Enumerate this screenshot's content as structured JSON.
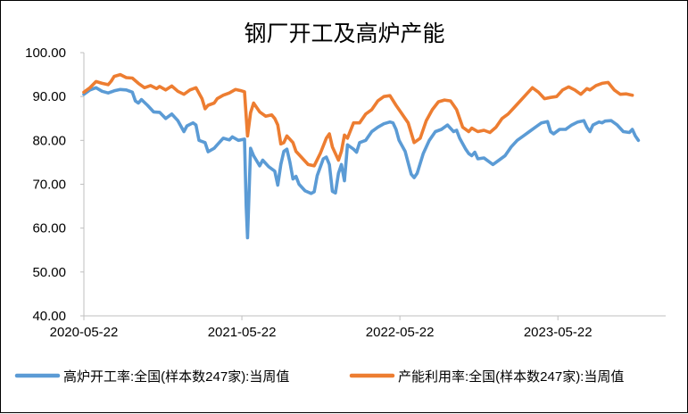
{
  "chart_data": {
    "type": "line",
    "title": "钢厂开工及高炉产能",
    "xlabel": "",
    "ylabel": "",
    "ylim": [
      40,
      100
    ],
    "yticks": [
      "40.00",
      "50.00",
      "60.00",
      "70.00",
      "80.00",
      "90.00",
      "100.00"
    ],
    "xlim": [
      "2020-05-22",
      "2024-01-26"
    ],
    "xticks": [
      "2020-05-22",
      "2021-05-22",
      "2022-05-22",
      "2023-05-22"
    ],
    "grid": false,
    "legend": "bottom",
    "series": [
      {
        "name": "高炉开工率:全国(样本数247家):当周值",
        "color": "#5B9BD5",
        "points": [
          [
            "2020-05-22",
            90.5
          ],
          [
            "2020-06-05",
            91.5
          ],
          [
            "2020-06-19",
            92.0
          ],
          [
            "2020-07-03",
            91.2
          ],
          [
            "2020-07-17",
            90.8
          ],
          [
            "2020-07-31",
            91.3
          ],
          [
            "2020-08-14",
            91.6
          ],
          [
            "2020-08-28",
            91.5
          ],
          [
            "2020-09-11",
            91.0
          ],
          [
            "2020-09-18",
            89.0
          ],
          [
            "2020-09-25",
            88.5
          ],
          [
            "2020-10-02",
            89.3
          ],
          [
            "2020-10-16",
            88.0
          ],
          [
            "2020-10-30",
            86.5
          ],
          [
            "2020-11-13",
            86.4
          ],
          [
            "2020-11-27",
            85.0
          ],
          [
            "2020-12-11",
            86.0
          ],
          [
            "2020-12-25",
            84.5
          ],
          [
            "2021-01-08",
            82.0
          ],
          [
            "2021-01-15",
            83.3
          ],
          [
            "2021-01-29",
            84.0
          ],
          [
            "2021-02-05",
            83.5
          ],
          [
            "2021-02-12",
            80.0
          ],
          [
            "2021-02-26",
            79.5
          ],
          [
            "2021-03-05",
            77.4
          ],
          [
            "2021-03-19",
            78.2
          ],
          [
            "2021-03-26",
            79.0
          ],
          [
            "2021-04-09",
            80.5
          ],
          [
            "2021-04-23",
            80.1
          ],
          [
            "2021-04-30",
            80.8
          ],
          [
            "2021-05-14",
            80.0
          ],
          [
            "2021-05-28",
            80.3
          ],
          [
            "2021-06-01",
            65.0
          ],
          [
            "2021-06-04",
            57.8
          ],
          [
            "2021-06-11",
            78.2
          ],
          [
            "2021-06-18",
            76.5
          ],
          [
            "2021-07-02",
            74.2
          ],
          [
            "2021-07-09",
            75.5
          ],
          [
            "2021-07-23",
            74.0
          ],
          [
            "2021-08-06",
            73.0
          ],
          [
            "2021-08-13",
            69.8
          ],
          [
            "2021-08-20",
            74.5
          ],
          [
            "2021-08-27",
            77.5
          ],
          [
            "2021-09-03",
            78.0
          ],
          [
            "2021-09-10",
            75.0
          ],
          [
            "2021-09-17",
            71.2
          ],
          [
            "2021-09-24",
            71.8
          ],
          [
            "2021-10-01",
            70.0
          ],
          [
            "2021-10-15",
            68.5
          ],
          [
            "2021-10-29",
            67.9
          ],
          [
            "2021-11-05",
            68.3
          ],
          [
            "2021-11-12",
            72.0
          ],
          [
            "2021-11-26",
            75.8
          ],
          [
            "2021-12-03",
            76.2
          ],
          [
            "2021-12-10",
            74.5
          ],
          [
            "2021-12-17",
            68.4
          ],
          [
            "2021-12-24",
            68.0
          ],
          [
            "2021-12-31",
            72.5
          ],
          [
            "2022-01-07",
            74.5
          ],
          [
            "2022-01-14",
            70.8
          ],
          [
            "2022-01-21",
            79.0
          ],
          [
            "2022-02-04",
            78.0
          ],
          [
            "2022-02-11",
            77.3
          ],
          [
            "2022-02-18",
            79.5
          ],
          [
            "2022-03-04",
            80.0
          ],
          [
            "2022-03-18",
            82.0
          ],
          [
            "2022-04-01",
            83.0
          ],
          [
            "2022-04-15",
            83.8
          ],
          [
            "2022-04-29",
            84.2
          ],
          [
            "2022-05-06",
            84.0
          ],
          [
            "2022-05-13",
            82.5
          ],
          [
            "2022-05-20",
            80.0
          ],
          [
            "2022-06-03",
            77.5
          ],
          [
            "2022-06-17",
            72.3
          ],
          [
            "2022-06-24",
            71.5
          ],
          [
            "2022-07-01",
            72.5
          ],
          [
            "2022-07-15",
            77.0
          ],
          [
            "2022-07-29",
            80.0
          ],
          [
            "2022-08-12",
            82.0
          ],
          [
            "2022-08-26",
            82.5
          ],
          [
            "2022-09-09",
            83.5
          ],
          [
            "2022-09-23",
            82.0
          ],
          [
            "2022-09-30",
            82.3
          ],
          [
            "2022-10-07",
            80.5
          ],
          [
            "2022-10-21",
            78.0
          ],
          [
            "2022-10-28",
            77.0
          ],
          [
            "2022-11-04",
            76.5
          ],
          [
            "2022-11-11",
            77.3
          ],
          [
            "2022-11-18",
            75.8
          ],
          [
            "2022-12-02",
            76.0
          ],
          [
            "2022-12-16",
            75.0
          ],
          [
            "2022-12-23",
            74.5
          ],
          [
            "2023-01-06",
            75.5
          ],
          [
            "2023-01-20",
            76.5
          ],
          [
            "2023-02-03",
            78.5
          ],
          [
            "2023-02-17",
            80.0
          ],
          [
            "2023-03-03",
            81.0
          ],
          [
            "2023-03-17",
            82.0
          ],
          [
            "2023-03-31",
            83.0
          ],
          [
            "2023-04-14",
            84.0
          ],
          [
            "2023-04-28",
            84.3
          ],
          [
            "2023-05-05",
            82.0
          ],
          [
            "2023-05-12",
            81.5
          ],
          [
            "2023-05-26",
            82.5
          ],
          [
            "2023-06-09",
            82.5
          ],
          [
            "2023-06-23",
            83.5
          ],
          [
            "2023-07-07",
            84.2
          ],
          [
            "2023-07-21",
            84.5
          ],
          [
            "2023-07-28",
            83.0
          ],
          [
            "2023-08-04",
            82.0
          ],
          [
            "2023-08-11",
            83.5
          ],
          [
            "2023-08-25",
            84.2
          ],
          [
            "2023-09-01",
            84.0
          ],
          [
            "2023-09-08",
            84.4
          ],
          [
            "2023-09-22",
            84.5
          ],
          [
            "2023-10-06",
            83.5
          ],
          [
            "2023-10-20",
            82.0
          ],
          [
            "2023-11-03",
            81.8
          ],
          [
            "2023-11-10",
            82.5
          ],
          [
            "2023-11-17",
            81.0
          ],
          [
            "2023-11-24",
            80.0
          ]
        ]
      },
      {
        "name": "产能利用率:全国(样本数247家):当周值",
        "color": "#ED7D31",
        "points": [
          [
            "2020-05-22",
            91.0
          ],
          [
            "2020-06-05",
            92.0
          ],
          [
            "2020-06-19",
            93.4
          ],
          [
            "2020-07-03",
            93.0
          ],
          [
            "2020-07-17",
            92.7
          ],
          [
            "2020-07-24",
            93.5
          ],
          [
            "2020-07-31",
            94.6
          ],
          [
            "2020-08-14",
            95.0
          ],
          [
            "2020-08-28",
            94.3
          ],
          [
            "2020-09-11",
            94.2
          ],
          [
            "2020-09-25",
            93.0
          ],
          [
            "2020-10-09",
            92.0
          ],
          [
            "2020-10-23",
            92.5
          ],
          [
            "2020-11-06",
            91.8
          ],
          [
            "2020-11-13",
            92.3
          ],
          [
            "2020-11-27",
            91.5
          ],
          [
            "2020-12-11",
            92.4
          ],
          [
            "2020-12-25",
            91.2
          ],
          [
            "2021-01-08",
            90.5
          ],
          [
            "2021-01-22",
            91.5
          ],
          [
            "2021-02-05",
            92.0
          ],
          [
            "2021-02-19",
            89.5
          ],
          [
            "2021-02-26",
            87.2
          ],
          [
            "2021-03-05",
            88.0
          ],
          [
            "2021-03-19",
            88.5
          ],
          [
            "2021-03-26",
            89.5
          ],
          [
            "2021-04-09",
            90.3
          ],
          [
            "2021-04-23",
            90.8
          ],
          [
            "2021-05-07",
            91.6
          ],
          [
            "2021-05-21",
            91.3
          ],
          [
            "2021-05-28",
            91.1
          ],
          [
            "2021-06-04",
            81.0
          ],
          [
            "2021-06-11",
            86.3
          ],
          [
            "2021-06-18",
            88.5
          ],
          [
            "2021-07-02",
            86.5
          ],
          [
            "2021-07-16",
            85.5
          ],
          [
            "2021-07-30",
            85.8
          ],
          [
            "2021-08-06",
            85.0
          ],
          [
            "2021-08-13",
            83.5
          ],
          [
            "2021-08-20",
            79.2
          ],
          [
            "2021-08-27",
            79.5
          ],
          [
            "2021-09-03",
            81.0
          ],
          [
            "2021-09-17",
            79.5
          ],
          [
            "2021-09-24",
            77.5
          ],
          [
            "2021-10-08",
            76.0
          ],
          [
            "2021-10-22",
            74.5
          ],
          [
            "2021-11-05",
            74.2
          ],
          [
            "2021-11-19",
            77.0
          ],
          [
            "2021-12-03",
            80.5
          ],
          [
            "2021-12-10",
            81.5
          ],
          [
            "2021-12-17",
            78.5
          ],
          [
            "2021-12-31",
            75.5
          ],
          [
            "2022-01-07",
            77.5
          ],
          [
            "2022-01-14",
            81.2
          ],
          [
            "2022-01-21",
            80.5
          ],
          [
            "2022-02-04",
            84.0
          ],
          [
            "2022-02-18",
            84.0
          ],
          [
            "2022-03-04",
            86.0
          ],
          [
            "2022-03-18",
            87.0
          ],
          [
            "2022-04-01",
            89.0
          ],
          [
            "2022-04-15",
            90.0
          ],
          [
            "2022-04-29",
            90.2
          ],
          [
            "2022-05-13",
            88.0
          ],
          [
            "2022-05-27",
            86.0
          ],
          [
            "2022-06-10",
            84.0
          ],
          [
            "2022-06-24",
            79.5
          ],
          [
            "2022-07-08",
            80.5
          ],
          [
            "2022-07-22",
            84.5
          ],
          [
            "2022-08-05",
            87.0
          ],
          [
            "2022-08-19",
            88.8
          ],
          [
            "2022-09-02",
            89.2
          ],
          [
            "2022-09-16",
            89.0
          ],
          [
            "2022-09-30",
            87.0
          ],
          [
            "2022-10-14",
            83.0
          ],
          [
            "2022-10-28",
            82.0
          ],
          [
            "2022-11-04",
            82.8
          ],
          [
            "2022-11-18",
            82.0
          ],
          [
            "2022-12-02",
            82.3
          ],
          [
            "2022-12-16",
            81.8
          ],
          [
            "2022-12-30",
            83.0
          ],
          [
            "2023-01-13",
            85.0
          ],
          [
            "2023-01-27",
            86.0
          ],
          [
            "2023-02-10",
            87.5
          ],
          [
            "2023-02-24",
            89.0
          ],
          [
            "2023-03-10",
            90.5
          ],
          [
            "2023-03-24",
            92.0
          ],
          [
            "2023-04-07",
            91.0
          ],
          [
            "2023-04-21",
            89.5
          ],
          [
            "2023-05-05",
            89.8
          ],
          [
            "2023-05-19",
            90.0
          ],
          [
            "2023-06-02",
            91.5
          ],
          [
            "2023-06-16",
            92.2
          ],
          [
            "2023-06-30",
            91.5
          ],
          [
            "2023-07-14",
            90.5
          ],
          [
            "2023-07-28",
            91.8
          ],
          [
            "2023-08-04",
            91.5
          ],
          [
            "2023-08-18",
            92.5
          ],
          [
            "2023-09-01",
            93.0
          ],
          [
            "2023-09-15",
            93.2
          ],
          [
            "2023-09-29",
            91.5
          ],
          [
            "2023-10-13",
            90.5
          ],
          [
            "2023-10-27",
            90.6
          ],
          [
            "2023-11-10",
            90.3
          ]
        ]
      }
    ]
  }
}
